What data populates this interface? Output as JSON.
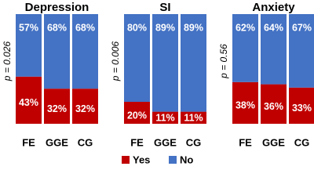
{
  "chart_data": {
    "type": "stacked_bar",
    "panels": [
      {
        "title": "Depression",
        "annotation": "p = 0.026",
        "categories": [
          "FE",
          "GGE",
          "CG"
        ]
      },
      {
        "title": "SI",
        "annotation": "p = 0.006",
        "categories": [
          "FE",
          "GGE",
          "CG"
        ]
      },
      {
        "title": "Anxiety",
        "annotation": "p = 0.56",
        "categories": [
          "FE",
          "GGE",
          "CG"
        ]
      }
    ],
    "series": [
      {
        "name": "Yes",
        "color": "#c00000",
        "values": [
          [
            43,
            32,
            32
          ],
          [
            20,
            11,
            11
          ],
          [
            38,
            36,
            33
          ]
        ],
        "value_labels": [
          [
            "43%",
            "32%",
            "32%"
          ],
          [
            "20%",
            "11%",
            "11%"
          ],
          [
            "38%",
            "36%",
            "33%"
          ]
        ]
      },
      {
        "name": "No",
        "color": "#4472c4",
        "values": [
          [
            57,
            68,
            68
          ],
          [
            80,
            89,
            89
          ],
          [
            62,
            64,
            67
          ]
        ],
        "value_labels": [
          [
            "57%",
            "68%",
            "68%"
          ],
          [
            "80%",
            "89%",
            "89%"
          ],
          [
            "62%",
            "64%",
            "67%"
          ]
        ]
      }
    ],
    "ylim": [
      0,
      100
    ]
  }
}
